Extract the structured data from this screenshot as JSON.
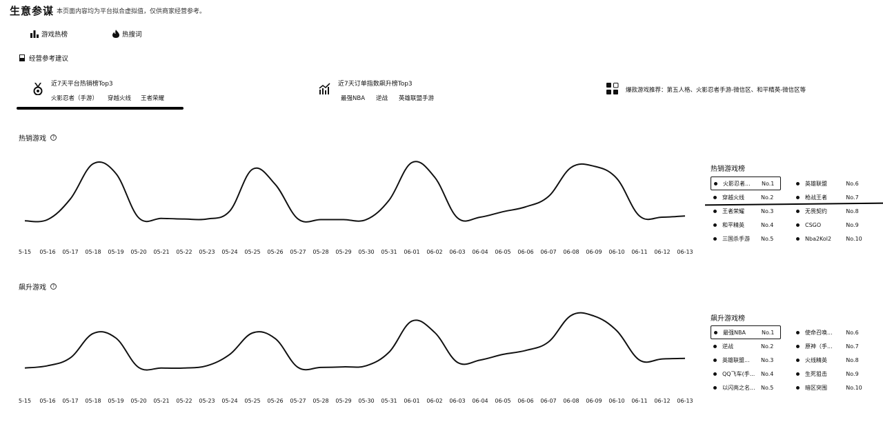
{
  "header": {
    "title": "生意参谋",
    "note": "本页面内容均为平台拟合虚拟值，仅供商家经营参考。"
  },
  "tabs": [
    {
      "label": "游戏热榜"
    },
    {
      "label": "热搜词"
    }
  ],
  "section": {
    "label": "经营参考建议"
  },
  "cards": [
    {
      "title": "近7天平台热销榜Top3",
      "items": [
        "火影忍者（手游）",
        "穿越火线",
        "王者荣耀"
      ]
    },
    {
      "title": "近7天订单指数飙升榜Top3",
      "items": [
        "最强NBA",
        "逆战",
        "英雄联盟手游"
      ]
    },
    {
      "text": "爆款游戏推荐：第五人格、火影忍者手游-微信区、和平精英-微信区等"
    }
  ],
  "hot_chart": {
    "title": "热销游戏",
    "legend_title": "热销游戏榜",
    "legend": [
      {
        "name": "火影忍者...",
        "rank": "No.1"
      },
      {
        "name": "穿越火线",
        "rank": "No.2"
      },
      {
        "name": "王者荣耀",
        "rank": "No.3"
      },
      {
        "name": "和平精英",
        "rank": "No.4"
      },
      {
        "name": "三国杀手游",
        "rank": "No.5"
      },
      {
        "name": "英雄联盟",
        "rank": "No.6"
      },
      {
        "name": "枪战王者",
        "rank": "No.7"
      },
      {
        "name": "无畏契约",
        "rank": "No.8"
      },
      {
        "name": "CSGO",
        "rank": "No.9"
      },
      {
        "name": "Nba2Kol2",
        "rank": "No.10"
      }
    ]
  },
  "rising_chart": {
    "title": "飙升游戏",
    "legend_title": "飙升游戏榜",
    "legend": [
      {
        "name": "最强NBA",
        "rank": "No.1"
      },
      {
        "name": "逆战",
        "rank": "No.2"
      },
      {
        "name": "英雄联盟...",
        "rank": "No.3"
      },
      {
        "name": "QQ飞车(手...",
        "rank": "No.4"
      },
      {
        "name": "以闪亮之名...",
        "rank": "No.5"
      },
      {
        "name": "使命召唤...",
        "rank": "No.6"
      },
      {
        "name": "原神（手...",
        "rank": "No.7"
      },
      {
        "name": "火线精英",
        "rank": "No.8"
      },
      {
        "name": "生死狙击",
        "rank": "No.9"
      },
      {
        "name": "暗区突围",
        "rank": "No.10"
      }
    ]
  },
  "chart_data": [
    {
      "type": "line",
      "title": "热销游戏",
      "x": [
        "5-15",
        "05-16",
        "05-17",
        "05-18",
        "05-19",
        "05-20",
        "05-21",
        "05-22",
        "05-23",
        "05-24",
        "05-25",
        "05-26",
        "05-27",
        "05-28",
        "05-29",
        "05-30",
        "05-31",
        "06-01",
        "06-02",
        "06-03",
        "06-04",
        "06-05",
        "06-06",
        "06-07",
        "06-08",
        "06-09",
        "06-10",
        "06-11",
        "06-12",
        "06-13"
      ],
      "series": [
        {
          "values": [
            2,
            4,
            38,
            96,
            80,
            7,
            6,
            5,
            5,
            18,
            87,
            62,
            5,
            4,
            4,
            4,
            36,
            98,
            74,
            7,
            8,
            17,
            25,
            42,
            90,
            92,
            72,
            10,
            8,
            10
          ]
        }
      ],
      "ylim": [
        0,
        100
      ],
      "grid": false,
      "axis_line": false
    },
    {
      "type": "line",
      "title": "飙升游戏",
      "x": [
        "5-15",
        "05-16",
        "05-17",
        "05-18",
        "05-19",
        "05-20",
        "05-21",
        "05-22",
        "05-23",
        "05-24",
        "05-25",
        "05-26",
        "05-27",
        "05-28",
        "05-29",
        "05-30",
        "05-31",
        "06-01",
        "06-02",
        "06-03",
        "06-04",
        "06-05",
        "06-06",
        "06-07",
        "06-08",
        "06-09",
        "06-10",
        "06-11",
        "06-12",
        "06-13"
      ],
      "series": [
        {
          "values": [
            4,
            8,
            22,
            65,
            57,
            5,
            4,
            4,
            8,
            28,
            66,
            56,
            5,
            5,
            6,
            8,
            32,
            87,
            67,
            14,
            18,
            28,
            35,
            50,
            97,
            96,
            70,
            18,
            20,
            21
          ]
        }
      ],
      "ylim": [
        0,
        100
      ],
      "grid": false,
      "axis_line": false
    }
  ]
}
